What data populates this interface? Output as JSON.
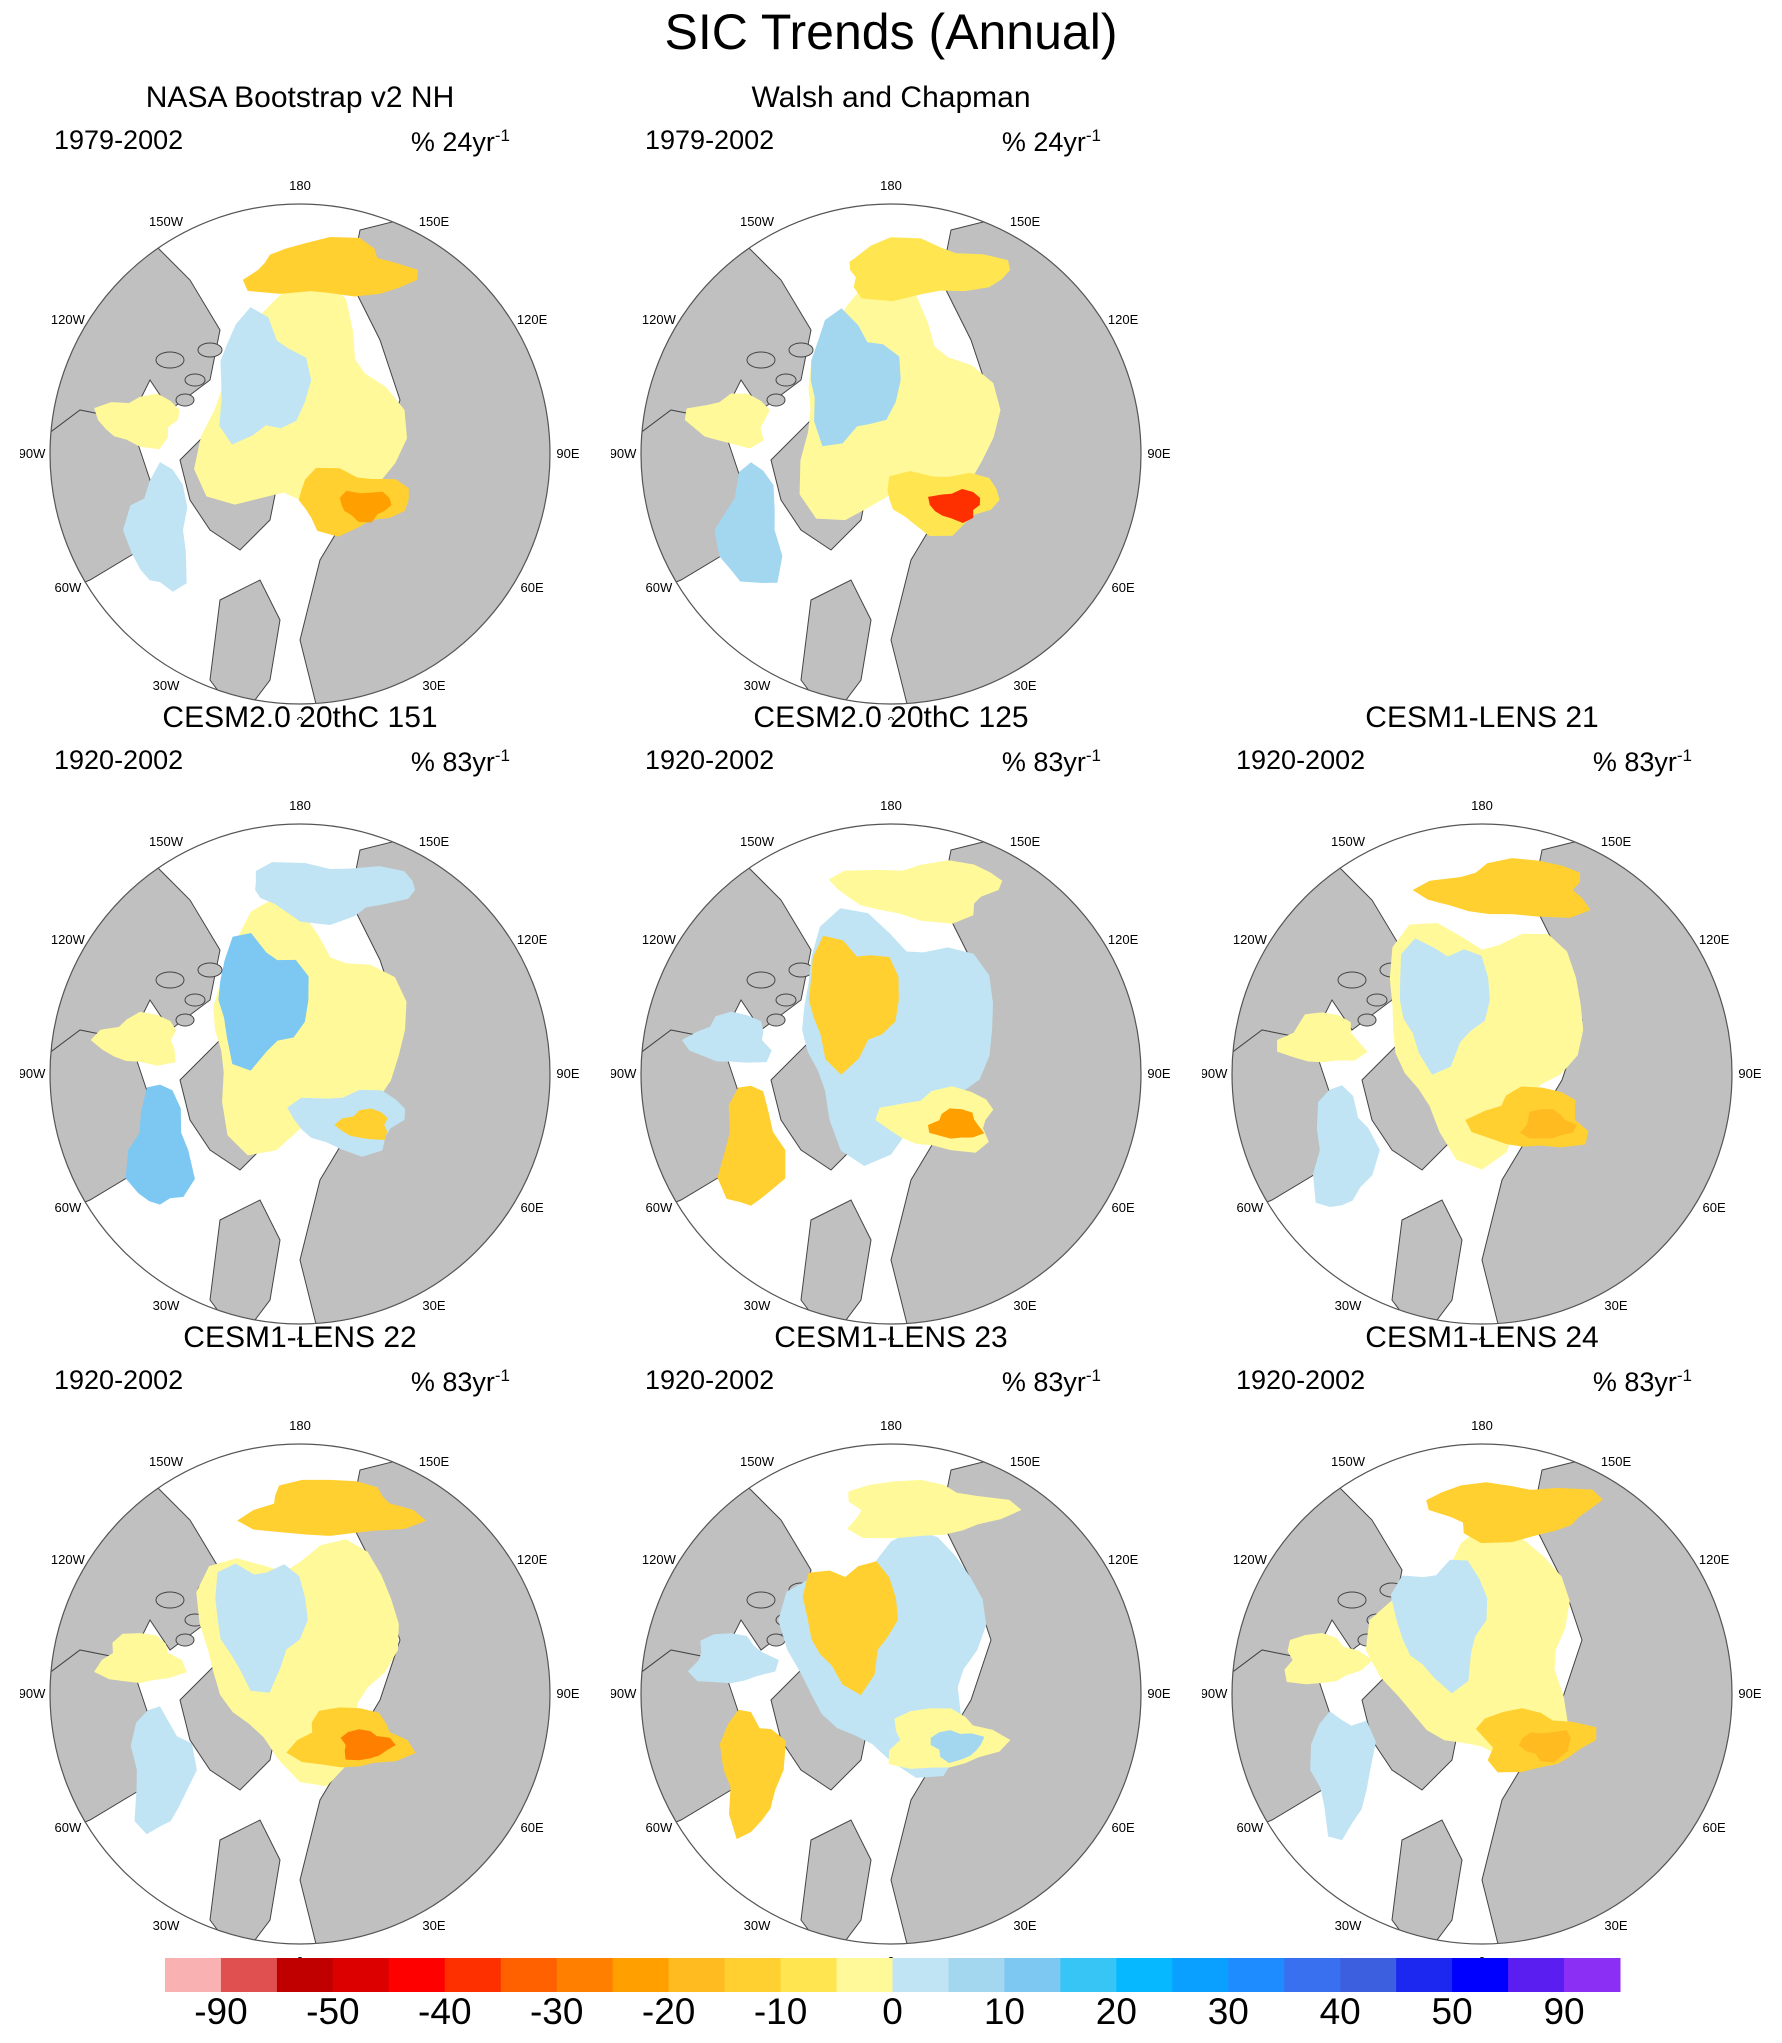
{
  "title": "SIC Trends (Annual)",
  "panels": [
    {
      "title": "NASA Bootstrap v2 NH",
      "period": "1979-2002",
      "units": "% 24yr",
      "units_sup": "-1",
      "pattern": "obs1"
    },
    {
      "title": "Walsh and Chapman",
      "period": "1979-2002",
      "units": "% 24yr",
      "units_sup": "-1",
      "pattern": "obs2"
    },
    {
      "title": "CESM2.0 20thC 151",
      "period": "1920-2002",
      "units": "% 83yr",
      "units_sup": "-1",
      "pattern": "blue"
    },
    {
      "title": "CESM2.0 20thC 125",
      "period": "1920-2002",
      "units": "% 83yr",
      "units_sup": "-1",
      "pattern": "mixed"
    },
    {
      "title": "CESM1-LENS 21",
      "period": "1920-2002",
      "units": "% 83yr",
      "units_sup": "-1",
      "pattern": "yellow"
    },
    {
      "title": "CESM1-LENS 22",
      "period": "1920-2002",
      "units": "% 83yr",
      "units_sup": "-1",
      "pattern": "yellow2"
    },
    {
      "title": "CESM1-LENS 23",
      "period": "1920-2002",
      "units": "% 83yr",
      "units_sup": "-1",
      "pattern": "blue2"
    },
    {
      "title": "CESM1-LENS 24",
      "period": "1920-2002",
      "units": "% 83yr",
      "units_sup": "-1",
      "pattern": "yellow3"
    }
  ],
  "longitude_labels": [
    "180",
    "150W",
    "120W",
    "90W",
    "60W",
    "30W",
    "0",
    "30E",
    "60E",
    "90E",
    "120E",
    "150E"
  ],
  "colorbar": {
    "colors": [
      "#f9b1b1",
      "#e05050",
      "#c00000",
      "#dd0000",
      "#ff0000",
      "#ff3000",
      "#ff6000",
      "#ff8000",
      "#ffa000",
      "#ffbb20",
      "#ffd030",
      "#ffe650",
      "#fff99a",
      "#c0e4f4",
      "#a3d7f0",
      "#7cc8f2",
      "#36c5f5",
      "#06b8ff",
      "#0aa0ff",
      "#1e8cff",
      "#3870f0",
      "#3c5fe0",
      "#1c28f0",
      "#0000ff",
      "#5a1ef0",
      "#8c2ff5"
    ],
    "tick_labels": [
      "-90",
      "-50",
      "-40",
      "-30",
      "-20",
      "-10",
      "0",
      "10",
      "20",
      "30",
      "40",
      "50",
      "90"
    ]
  },
  "colors": {
    "land": "#c0c0c0",
    "coast": "#444444",
    "ice_yellow": "#fff99a",
    "ice_blue": "#c0e4f4",
    "ice_orange": "#ffd030"
  }
}
